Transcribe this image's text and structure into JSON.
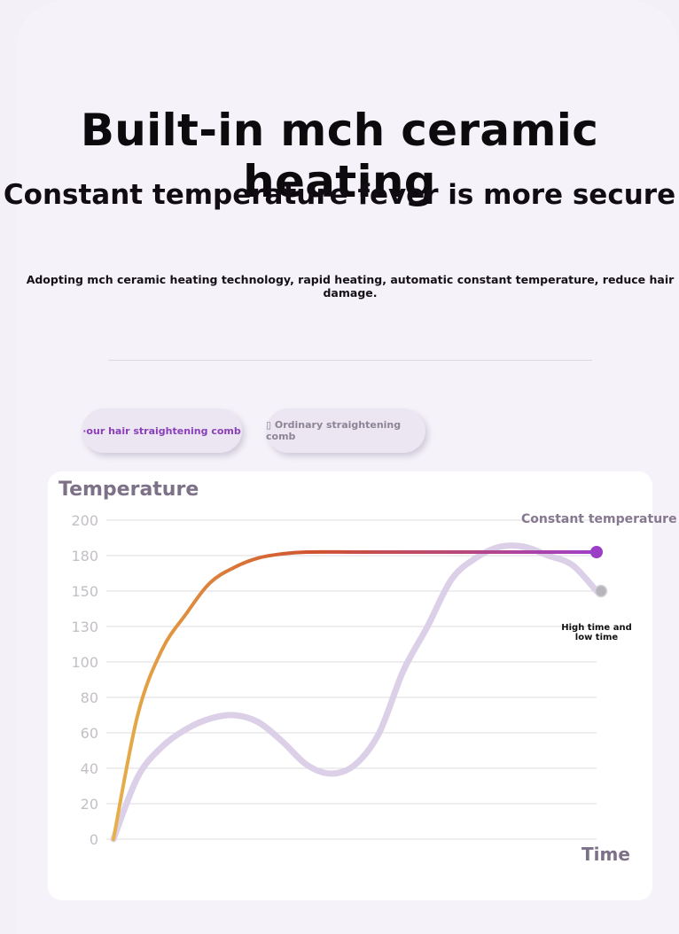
{
  "header": {
    "title": "Built-in mch ceramic heating",
    "subtitle": "Constant temperature fever is more secure",
    "description": "Adopting mch ceramic heating technology, rapid heating, automatic constant temperature, reduce hair damage."
  },
  "legend": {
    "ours": "·our hair straightening comb",
    "ordinary": "▯ Ordinary straightening comb"
  },
  "colors": {
    "ours_gradient": [
      "#e6b04a",
      "#d0502e",
      "#a040c8"
    ],
    "ordinary": "#dcd0e8",
    "grid": "#dedce2"
  },
  "chart_data": {
    "type": "line",
    "ylabel": "Temperature",
    "xlabel": "Time",
    "yticks": [
      "200",
      "180",
      "150",
      "130",
      "100",
      "80",
      "60",
      "40",
      "20",
      "0"
    ],
    "annotations": {
      "constant": "Constant temperature",
      "fluctuating": "High time and low time"
    },
    "series": [
      {
        "name": "our hair straightening comb",
        "x": [
          0,
          0.05,
          0.1,
          0.15,
          0.2,
          0.25,
          0.3,
          0.35,
          0.4,
          0.5,
          0.6,
          0.7,
          0.8,
          0.9,
          1.0
        ],
        "y": [
          0,
          70,
          110,
          137,
          157,
          170,
          178,
          181,
          182,
          182,
          182,
          182,
          182,
          182,
          182
        ]
      },
      {
        "name": "Ordinary straightening comb",
        "x": [
          0,
          0.05,
          0.1,
          0.15,
          0.2,
          0.25,
          0.3,
          0.35,
          0.4,
          0.45,
          0.5,
          0.55,
          0.6,
          0.65,
          0.7,
          0.75,
          0.8,
          0.85,
          0.9,
          0.95,
          1.0
        ],
        "y": [
          0,
          35,
          52,
          62,
          68,
          70,
          66,
          55,
          42,
          37,
          42,
          60,
          95,
          130,
          160,
          178,
          185,
          185,
          180,
          172,
          150
        ]
      }
    ]
  }
}
